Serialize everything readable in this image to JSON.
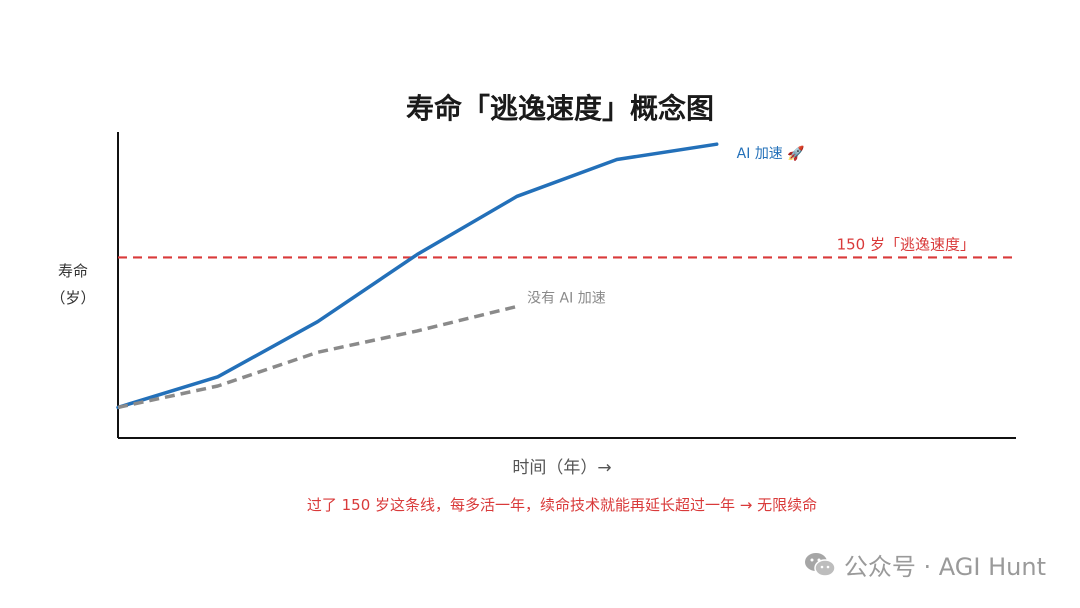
{
  "chart_data": {
    "type": "line",
    "title": "寿命「逃逸速度」概念图",
    "xlabel": "时间（年）→",
    "ylabel_line1": "寿命",
    "ylabel_line2": "（岁）",
    "footnote": "过了 150 岁这条线，每多活一年，续命技术就能再延长超过一年 → 无限续命",
    "xlim": [
      0,
      9
    ],
    "ylim": [
      0,
      10
    ],
    "series": [
      {
        "name": "AI 加速 🚀",
        "color": "#2370b9",
        "dash": "solid",
        "x": [
          0,
          1,
          2,
          3,
          4,
          5,
          6
        ],
        "y": [
          1.0,
          2.0,
          3.8,
          6.0,
          7.9,
          9.1,
          9.6
        ]
      },
      {
        "name": "没有 AI 加速",
        "color": "#8a8a8a",
        "dash": "dashed",
        "x": [
          0,
          1,
          2,
          3,
          4
        ],
        "y": [
          1.0,
          1.7,
          2.8,
          3.5,
          4.3
        ]
      }
    ],
    "threshold": {
      "label": "150 岁「逃逸速度」",
      "value": 5.9,
      "color": "#d93a3a"
    }
  },
  "watermark": {
    "text": "公众号 · AGI Hunt",
    "icon": "wechat-icon"
  }
}
